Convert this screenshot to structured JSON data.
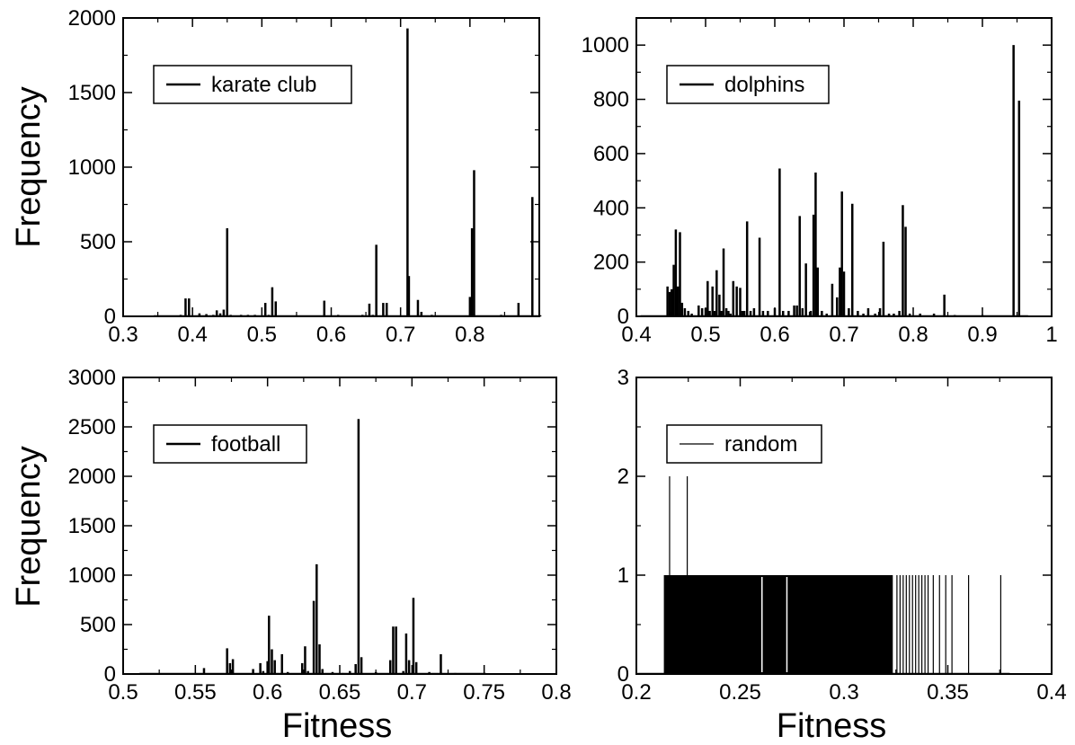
{
  "figure": {
    "ylabel_left": "Frequency",
    "xlabel_bottom": "Fitness"
  },
  "chart_data": [
    {
      "type": "bar",
      "panel": "top-left",
      "legend": "karate club",
      "legend_position": "top-left",
      "xlim": [
        0.3,
        0.9
      ],
      "ylim": [
        0,
        2000
      ],
      "xticks": [
        0.3,
        0.4,
        0.5,
        0.6,
        0.7,
        0.8
      ],
      "yticks": [
        0,
        500,
        1000,
        1500,
        2000
      ],
      "xtick_labels": [
        "0.3",
        "0.4",
        "0.5",
        "0.6",
        "0.7",
        "0.8"
      ],
      "ytick_labels": [
        "0",
        "500",
        "1000",
        "1500",
        "2000"
      ],
      "line_width": 2.5,
      "x": [
        0.383,
        0.39,
        0.395,
        0.41,
        0.42,
        0.43,
        0.435,
        0.44,
        0.445,
        0.45,
        0.455,
        0.46,
        0.47,
        0.48,
        0.49,
        0.495,
        0.505,
        0.51,
        0.515,
        0.52,
        0.54,
        0.56,
        0.59,
        0.61,
        0.62,
        0.635,
        0.645,
        0.655,
        0.66,
        0.665,
        0.675,
        0.68,
        0.69,
        0.71,
        0.712,
        0.715,
        0.725,
        0.73,
        0.745,
        0.76,
        0.775,
        0.8,
        0.803,
        0.806,
        0.83,
        0.845,
        0.87,
        0.89
      ],
      "y": [
        10,
        120,
        120,
        20,
        15,
        10,
        40,
        20,
        45,
        590,
        10,
        5,
        10,
        10,
        10,
        5,
        90,
        10,
        195,
        100,
        5,
        5,
        105,
        10,
        5,
        5,
        10,
        85,
        10,
        480,
        90,
        90,
        5,
        1930,
        270,
        5,
        110,
        30,
        10,
        5,
        5,
        130,
        590,
        980,
        5,
        10,
        90,
        800
      ]
    },
    {
      "type": "bar",
      "panel": "top-right",
      "legend": "dolphins",
      "legend_position": "top-left",
      "xlim": [
        0.4,
        1.0
      ],
      "ylim": [
        0,
        1100
      ],
      "xticks": [
        0.4,
        0.5,
        0.6,
        0.7,
        0.8,
        0.9,
        1.0
      ],
      "yticks": [
        0,
        200,
        400,
        600,
        800,
        1000
      ],
      "xtick_labels": [
        "0.4",
        "0.5",
        "0.6",
        "0.7",
        "0.8",
        "0.9",
        "1"
      ],
      "ytick_labels": [
        "0",
        "200",
        "400",
        "600",
        "800",
        "1000"
      ],
      "line_width": 2.5,
      "x": [
        0.445,
        0.448,
        0.451,
        0.454,
        0.457,
        0.46,
        0.463,
        0.466,
        0.47,
        0.475,
        0.48,
        0.49,
        0.495,
        0.5,
        0.503,
        0.506,
        0.51,
        0.513,
        0.516,
        0.52,
        0.523,
        0.526,
        0.53,
        0.533,
        0.536,
        0.54,
        0.545,
        0.55,
        0.553,
        0.556,
        0.56,
        0.565,
        0.57,
        0.578,
        0.583,
        0.59,
        0.6,
        0.607,
        0.612,
        0.62,
        0.628,
        0.632,
        0.636,
        0.64,
        0.645,
        0.652,
        0.656,
        0.659,
        0.662,
        0.668,
        0.675,
        0.683,
        0.69,
        0.694,
        0.697,
        0.7,
        0.707,
        0.712,
        0.72,
        0.728,
        0.735,
        0.745,
        0.752,
        0.757,
        0.765,
        0.772,
        0.78,
        0.785,
        0.789,
        0.795,
        0.81,
        0.83,
        0.845,
        0.86,
        0.9,
        0.945,
        0.953
      ],
      "y": [
        110,
        90,
        100,
        190,
        320,
        110,
        310,
        50,
        30,
        20,
        10,
        40,
        30,
        30,
        130,
        20,
        110,
        20,
        170,
        80,
        20,
        250,
        30,
        20,
        10,
        130,
        110,
        105,
        20,
        20,
        350,
        20,
        30,
        290,
        20,
        20,
        30,
        545,
        20,
        20,
        40,
        40,
        370,
        30,
        195,
        20,
        375,
        530,
        180,
        20,
        10,
        120,
        70,
        180,
        460,
        165,
        30,
        415,
        20,
        10,
        30,
        10,
        30,
        275,
        10,
        10,
        20,
        410,
        330,
        10,
        10,
        10,
        80,
        5,
        5,
        1000,
        795
      ]
    },
    {
      "type": "bar",
      "panel": "bottom-left",
      "legend": "football",
      "legend_position": "top-left",
      "xlim": [
        0.5,
        0.8
      ],
      "ylim": [
        0,
        3000
      ],
      "xticks": [
        0.5,
        0.55,
        0.6,
        0.65,
        0.7,
        0.75,
        0.8
      ],
      "yticks": [
        0,
        500,
        1000,
        1500,
        2000,
        2500,
        3000
      ],
      "xtick_labels": [
        "0.5",
        "0.55",
        "0.6",
        "0.65",
        "0.7",
        "0.75",
        "0.8"
      ],
      "ytick_labels": [
        "0",
        "500",
        "1000",
        "1500",
        "2000",
        "2500",
        "3000"
      ],
      "xlabel": "Fitness",
      "line_width": 2.5,
      "x": [
        0.53,
        0.556,
        0.572,
        0.574,
        0.576,
        0.59,
        0.595,
        0.597,
        0.6,
        0.601,
        0.603,
        0.605,
        0.61,
        0.614,
        0.624,
        0.626,
        0.628,
        0.632,
        0.634,
        0.636,
        0.638,
        0.645,
        0.652,
        0.657,
        0.661,
        0.663,
        0.665,
        0.675,
        0.685,
        0.687,
        0.689,
        0.694,
        0.696,
        0.698,
        0.701,
        0.703,
        0.712,
        0.72,
        0.73,
        0.745
      ],
      "y": [
        5,
        60,
        260,
        110,
        150,
        50,
        110,
        30,
        130,
        590,
        250,
        140,
        200,
        20,
        110,
        280,
        30,
        740,
        1110,
        300,
        50,
        20,
        10,
        30,
        100,
        2580,
        170,
        20,
        140,
        480,
        480,
        30,
        410,
        140,
        770,
        120,
        20,
        200,
        10,
        5
      ]
    },
    {
      "type": "bar",
      "panel": "bottom-right",
      "legend": "random",
      "legend_position": "top-left",
      "xlim": [
        0.2,
        0.4
      ],
      "ylim": [
        0,
        3
      ],
      "xticks": [
        0.2,
        0.25,
        0.3,
        0.35,
        0.4
      ],
      "yticks": [
        0,
        1,
        2,
        3
      ],
      "xtick_labels": [
        "0.2",
        "0.25",
        "0.3",
        "0.35",
        "0.4"
      ],
      "ytick_labels": [
        "0",
        "1",
        "2",
        "3"
      ],
      "xlabel": "Fitness",
      "line_width": 1.2,
      "dense_fill": {
        "from": 0.2135,
        "to": 0.3235,
        "value": 1
      },
      "x": [
        0.2135,
        0.216,
        0.2245,
        0.3255,
        0.327,
        0.3285,
        0.33,
        0.3315,
        0.333,
        0.3345,
        0.336,
        0.3375,
        0.339,
        0.3405,
        0.343,
        0.346,
        0.349,
        0.352,
        0.36,
        0.3755
      ],
      "y": [
        1,
        2,
        2,
        1,
        1,
        1,
        1,
        1,
        1,
        1,
        1,
        1,
        1,
        1,
        1,
        1,
        1,
        1,
        1,
        1
      ]
    }
  ]
}
